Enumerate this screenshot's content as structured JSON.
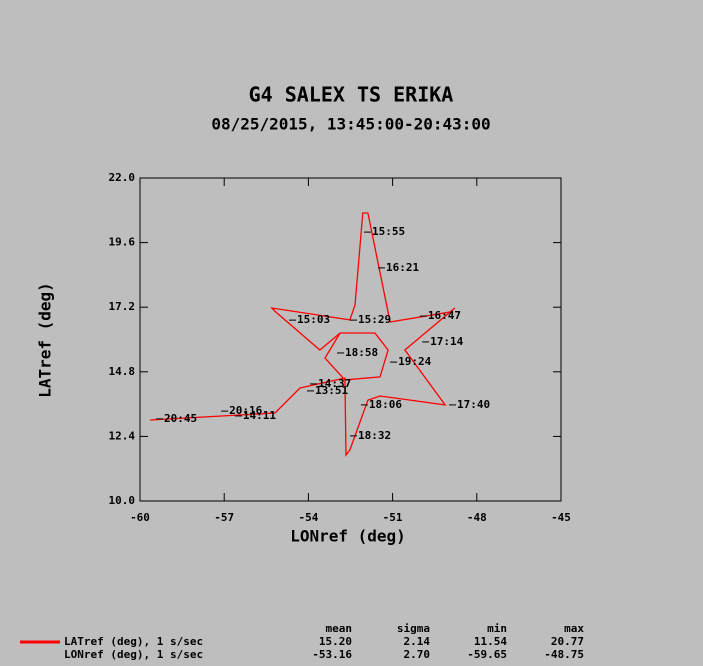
{
  "chart_data": {
    "type": "line",
    "title": "G4 SALEX TS ERIKA",
    "subtitle": "08/25/2015, 13:45:00-20:43:00",
    "xlabel": "LONref (deg)",
    "ylabel": "LATref (deg)",
    "xlim": [
      -60,
      -45
    ],
    "ylim": [
      10,
      22
    ],
    "xticks": [
      -60,
      -57,
      -54,
      -51,
      -48,
      -45
    ],
    "yticks": [
      {
        "value": 10,
        "label": "10.0"
      },
      {
        "value": 12.4,
        "label": "12.4"
      },
      {
        "value": 14.8,
        "label": "14.8"
      },
      {
        "value": 17.2,
        "label": "17.2"
      },
      {
        "value": 19.6,
        "label": "19.6"
      },
      {
        "value": 22,
        "label": "22.0"
      }
    ],
    "x": [
      -59.64,
      -55.19,
      -54.3,
      -52.7,
      -52.66,
      -52.52,
      -51.88,
      -51.45,
      -49.13,
      -49.31,
      -50.56,
      -48.78,
      -48.96,
      -51.09,
      -51.88,
      -52.06,
      -52.34,
      -52.52,
      -55.3,
      -55.16,
      -53.59,
      -52.87,
      -51.63,
      -51.16,
      -51.45,
      -52.7,
      -53.41,
      -52.87
    ],
    "series": [
      {
        "color": "#ff0000",
        "values": [
          13.01,
          13.27,
          14.2,
          14.57,
          11.71,
          11.9,
          13.75,
          13.9,
          13.57,
          13.83,
          15.61,
          17.17,
          17.02,
          16.65,
          20.7,
          20.7,
          17.28,
          16.73,
          17.17,
          17.02,
          15.61,
          16.24,
          16.24,
          15.61,
          14.61,
          14.5,
          15.31,
          16.24
        ]
      }
    ],
    "annotations": [
      {
        "text": "15:55",
        "x": -51.77,
        "y": 19.99
      },
      {
        "text": "16:21",
        "x": -51.27,
        "y": 18.66
      },
      {
        "text": "15:03",
        "x": -54.44,
        "y": 16.72
      },
      {
        "text": "15:29",
        "x": -52.27,
        "y": 16.72
      },
      {
        "text": "16:47",
        "x": -49.78,
        "y": 16.87
      },
      {
        "text": "17:14",
        "x": -49.7,
        "y": 15.91
      },
      {
        "text": "18:58",
        "x": -52.73,
        "y": 15.5
      },
      {
        "text": "19:24",
        "x": -50.84,
        "y": 15.16
      },
      {
        "text": "14:37",
        "x": -53.69,
        "y": 14.35
      },
      {
        "text": "13:51",
        "x": -53.8,
        "y": 14.09
      },
      {
        "text": "20:16",
        "x": -56.86,
        "y": 13.34
      },
      {
        "text": "14:11",
        "x": -56.37,
        "y": 13.16
      },
      {
        "text": "20:45",
        "x": -59.18,
        "y": 13.05
      },
      {
        "text": "18:06",
        "x": -51.88,
        "y": 13.57
      },
      {
        "text": "17:40",
        "x": -48.74,
        "y": 13.57
      },
      {
        "text": "18:32",
        "x": -52.27,
        "y": 12.42
      }
    ],
    "stats": {
      "columns": [
        "mean",
        "sigma",
        "min",
        "max"
      ],
      "rows": [
        {
          "label": "LATref (deg), 1 s/sec",
          "values": [
            "15.20",
            "2.14",
            "11.54",
            "20.77"
          ]
        },
        {
          "label": "LONref (deg), 1 s/sec",
          "values": [
            "-53.16",
            "2.70",
            "-59.65",
            "-48.75"
          ]
        }
      ]
    }
  }
}
